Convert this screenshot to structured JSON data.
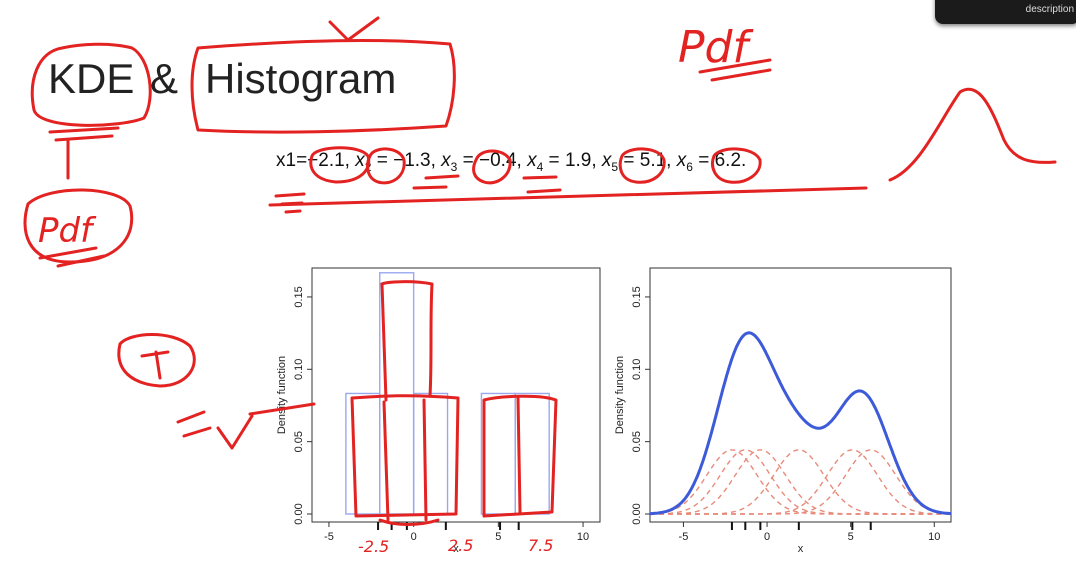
{
  "slide": {
    "title_kde": "KDE",
    "title_amp": "&",
    "title_histogram": "Histogram",
    "equation": {
      "prefix": "x1=",
      "items": [
        {
          "sym": "",
          "sub": "",
          "val": "−2.1"
        },
        {
          "sym": "x",
          "sub": "2",
          "val": "−1.3"
        },
        {
          "sym": "x",
          "sub": "3",
          "val": "−0.4"
        },
        {
          "sym": "x",
          "sub": "4",
          "val": "1.9"
        },
        {
          "sym": "x",
          "sub": "5",
          "val": "5.1"
        },
        {
          "sym": "x",
          "sub": "6",
          "val": "6.2."
        }
      ]
    },
    "corner_label": "description"
  },
  "annotations": {
    "pdf_top": "Pdf",
    "pdf_left": "Pdf",
    "tick_notes": [
      "-2.5",
      "2.5",
      "7.5"
    ]
  },
  "chart_data": [
    {
      "type": "bar",
      "name": "histogram",
      "bins": [
        {
          "x0": -4,
          "x1": -2,
          "value": 0.0833
        },
        {
          "x0": -2,
          "x1": 0,
          "value": 0.1667
        },
        {
          "x0": 0,
          "x1": 2,
          "value": 0.0833
        },
        {
          "x0": 4,
          "x1": 6,
          "value": 0.0833
        },
        {
          "x0": 6,
          "x1": 8,
          "value": 0.0833
        }
      ],
      "rug": [
        -2.1,
        -1.3,
        -0.4,
        1.9,
        5.1,
        6.2
      ],
      "xlabel": "x",
      "ylabel": "Density function",
      "xlim": [
        -6,
        11
      ],
      "ylim": [
        0,
        0.17
      ],
      "xticks": [
        -5,
        0,
        5,
        10
      ],
      "yticks": [
        0.0,
        0.05,
        0.1,
        0.15
      ],
      "ytick_labels": [
        "0.00",
        "0.05",
        "0.10",
        "0.15"
      ],
      "color": "#9aa8f0"
    },
    {
      "type": "line",
      "name": "kde",
      "points": [
        -2.1,
        -1.3,
        -0.4,
        1.9,
        5.1,
        6.2
      ],
      "bandwidth": 1.5,
      "xlabel": "x",
      "ylabel": "Density function",
      "xlim": [
        -7,
        11
      ],
      "ylim": [
        0,
        0.17
      ],
      "xticks": [
        -5,
        0,
        5,
        10
      ],
      "yticks": [
        0.0,
        0.05,
        0.1,
        0.15
      ],
      "ytick_labels": [
        "0.00",
        "0.05",
        "0.10",
        "0.15"
      ],
      "kde_color": "#3d5bd8",
      "kernel_color": "#e88a7a"
    }
  ]
}
